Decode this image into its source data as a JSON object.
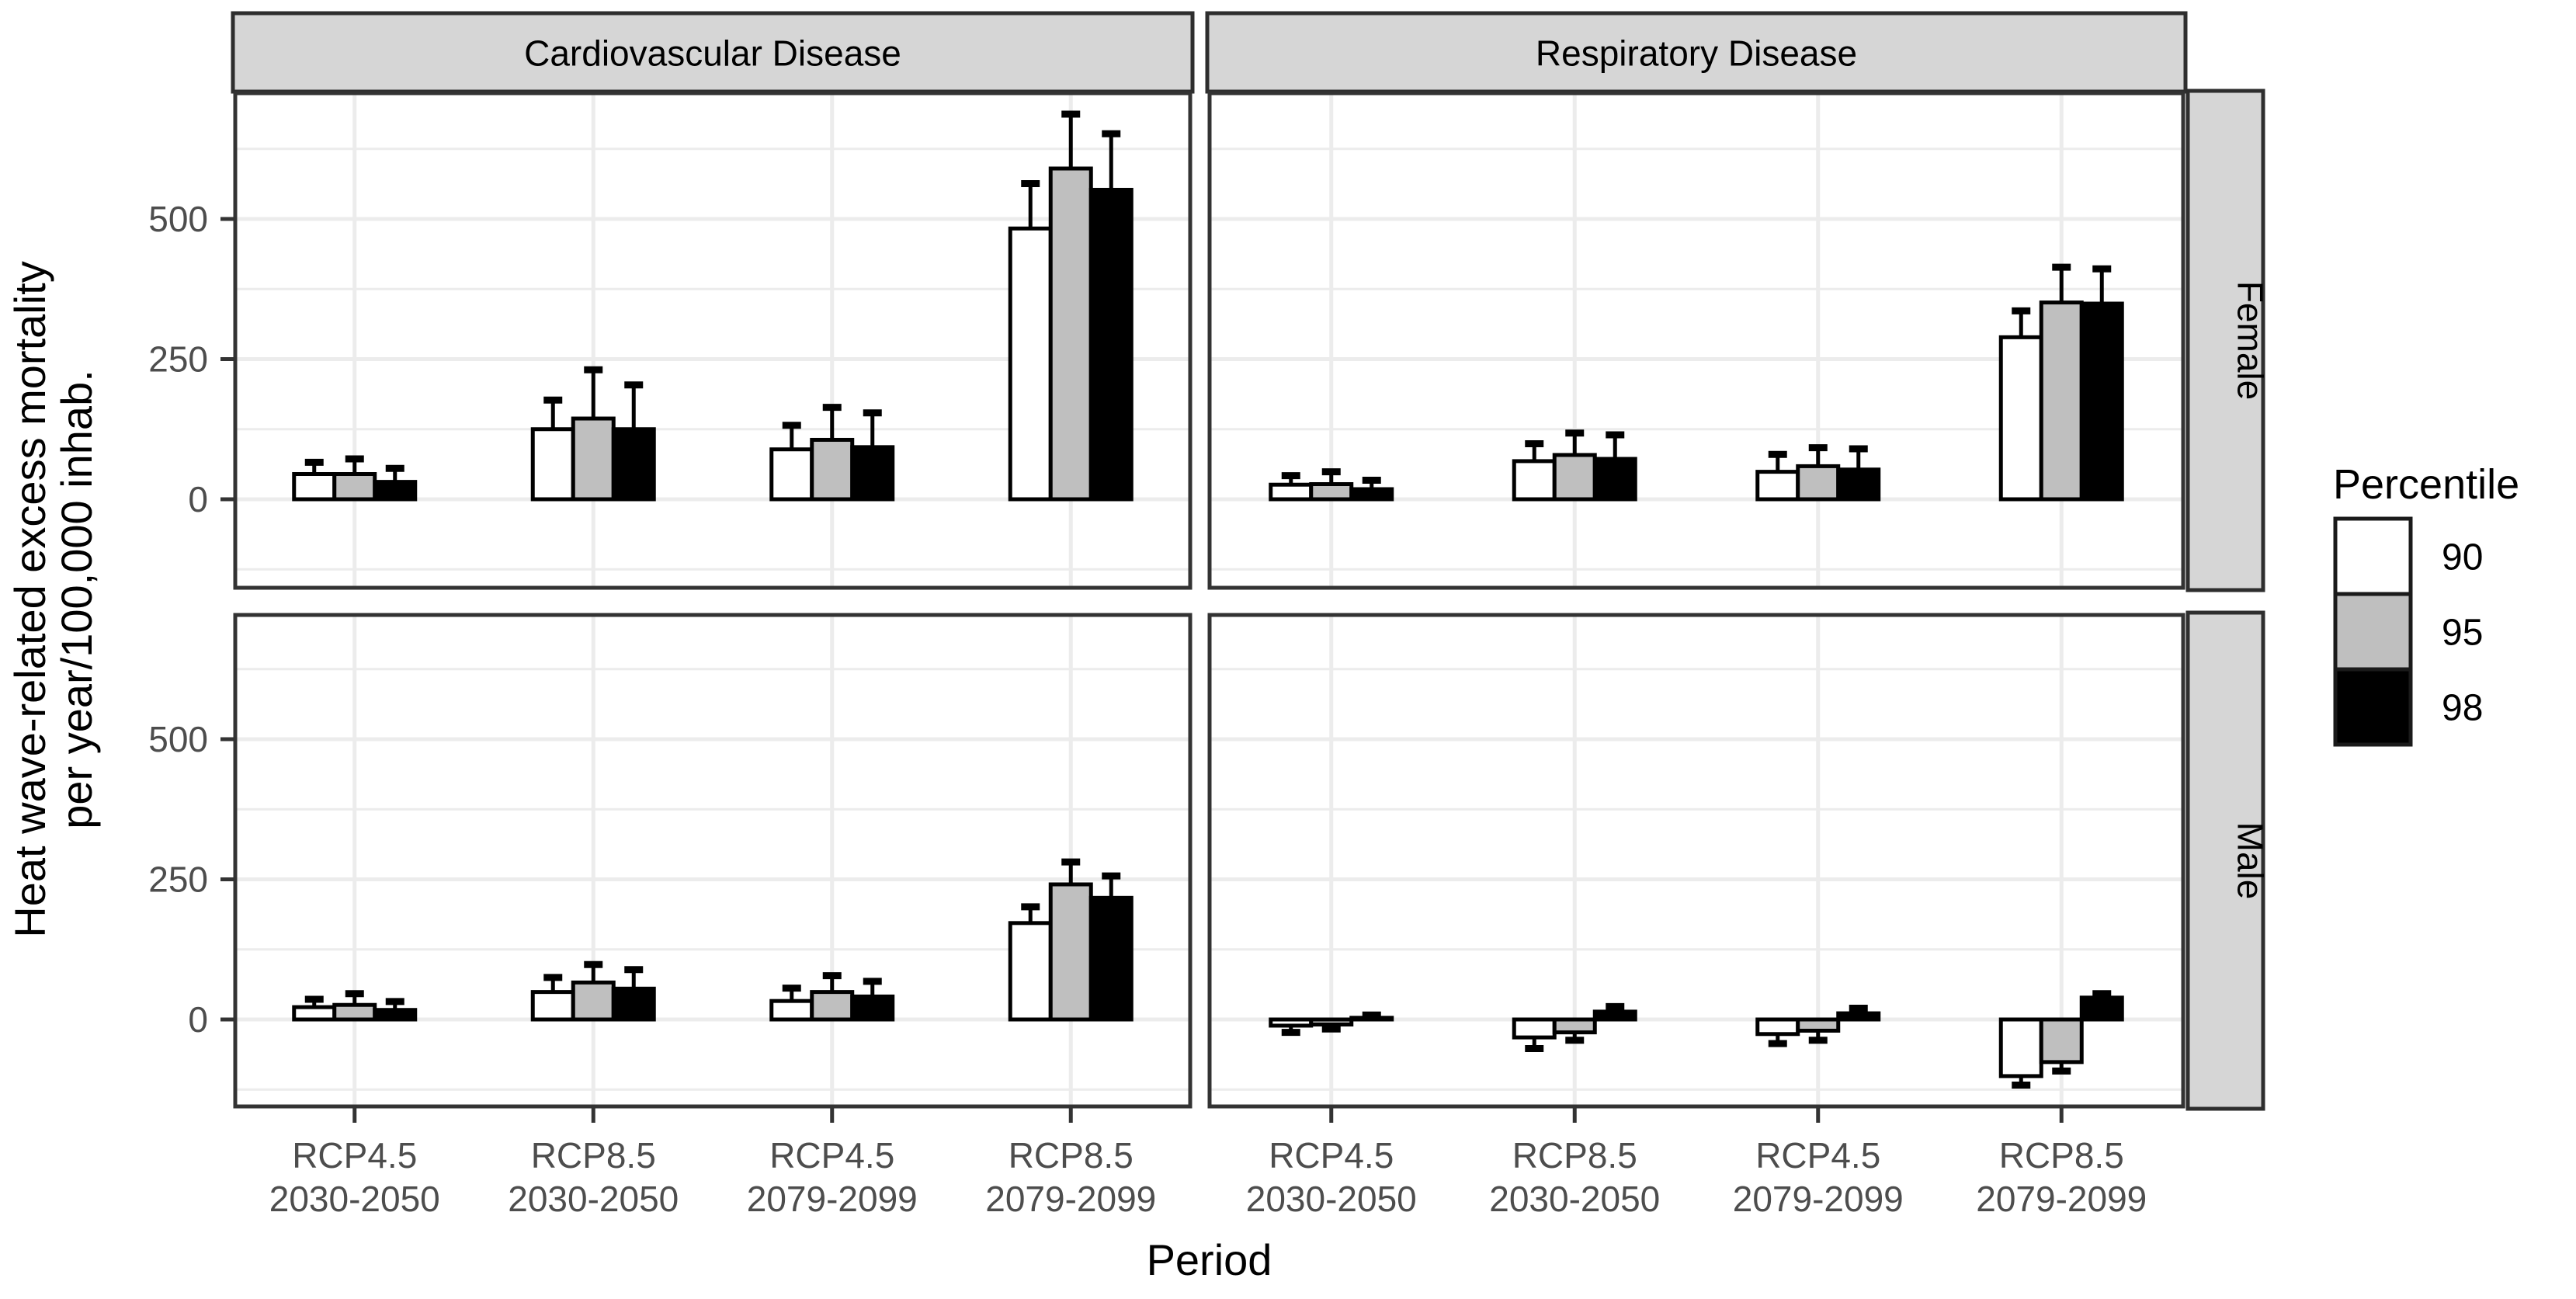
{
  "chart_data": {
    "type": "bar",
    "title": "",
    "xlabel": "Period",
    "ylabel_lines": [
      "Heat wave-related excess mortality",
      "per year/100,000 inhab."
    ],
    "col_facets": [
      "Cardiovascular Disease",
      "Respiratory Disease"
    ],
    "row_facets": [
      "Female",
      "Male"
    ],
    "x_categories": [
      {
        "line1": "RCP4.5",
        "line2": "2030-2050"
      },
      {
        "line1": "RCP8.5",
        "line2": "2030-2050"
      },
      {
        "line1": "RCP4.5",
        "line2": "2079-2099"
      },
      {
        "line1": "RCP8.5",
        "line2": "2079-2099"
      }
    ],
    "y_axis": {
      "major_ticks": [
        0,
        250,
        500
      ],
      "minor_gridlines": [
        -125,
        125,
        375,
        625
      ],
      "ylim": [
        -158,
        724
      ],
      "grid": true
    },
    "legend": {
      "title": "Percentile",
      "position": "right",
      "entries": [
        {
          "label": "90",
          "fill": "#ffffff"
        },
        {
          "label": "95",
          "fill": "#bfbfbf"
        },
        {
          "label": "98",
          "fill": "#000000"
        }
      ]
    },
    "series_note": "each bar = [value, error_whisker_end] in deaths per year per 100,000 inhab.",
    "panels": [
      {
        "row": "Female",
        "col": "Cardiovascular Disease",
        "groups": [
          [
            [
              45,
              66
            ],
            [
              45,
              72
            ],
            [
              31,
              55
            ]
          ],
          [
            [
              125,
              177
            ],
            [
              144,
              231
            ],
            [
              125,
              204
            ]
          ],
          [
            [
              89,
              132
            ],
            [
              106,
              164
            ],
            [
              93,
              154
            ]
          ],
          [
            [
              483,
              563
            ],
            [
              590,
              687
            ],
            [
              552,
              652
            ]
          ]
        ]
      },
      {
        "row": "Female",
        "col": "Respiratory Disease",
        "groups": [
          [
            [
              26,
              42
            ],
            [
              27,
              49
            ],
            [
              18,
              34
            ]
          ],
          [
            [
              68,
              99
            ],
            [
              79,
              118
            ],
            [
              72,
              115
            ]
          ],
          [
            [
              49,
              80
            ],
            [
              59,
              92
            ],
            [
              53,
              90
            ]
          ],
          [
            [
              289,
              336
            ],
            [
              351,
              414
            ],
            [
              349,
              411
            ]
          ]
        ]
      },
      {
        "row": "Male",
        "col": "Cardiovascular Disease",
        "groups": [
          [
            [
              22,
              36
            ],
            [
              26,
              46
            ],
            [
              17,
              32
            ]
          ],
          [
            [
              49,
              75
            ],
            [
              66,
              98
            ],
            [
              55,
              89
            ]
          ],
          [
            [
              33,
              56
            ],
            [
              49,
              78
            ],
            [
              41,
              68
            ]
          ],
          [
            [
              172,
              201
            ],
            [
              241,
              281
            ],
            [
              217,
              256
            ]
          ]
        ]
      },
      {
        "row": "Male",
        "col": "Respiratory Disease",
        "groups": [
          [
            [
              -11,
              -23
            ],
            [
              -9,
              -17
            ],
            [
              3,
              8
            ]
          ],
          [
            [
              -32,
              -52
            ],
            [
              -23,
              -37
            ],
            [
              14,
              23
            ]
          ],
          [
            [
              -26,
              -43
            ],
            [
              -20,
              -37
            ],
            [
              11,
              20
            ]
          ],
          [
            [
              -101,
              -117
            ],
            [
              -76,
              -92
            ],
            [
              39,
              46
            ]
          ]
        ]
      }
    ],
    "colors": {
      "bar_fills": [
        "#ffffff",
        "#bfbfbf",
        "#000000"
      ],
      "bar_stroke": "#000000",
      "gridline": "#ececec",
      "panel_border": "#333333",
      "strip_fill": "#d6d6d6",
      "strip_border": "#2e2e2e",
      "tick_text": "#4d4d4d",
      "title_text": "#000000",
      "background": "#ffffff"
    }
  }
}
